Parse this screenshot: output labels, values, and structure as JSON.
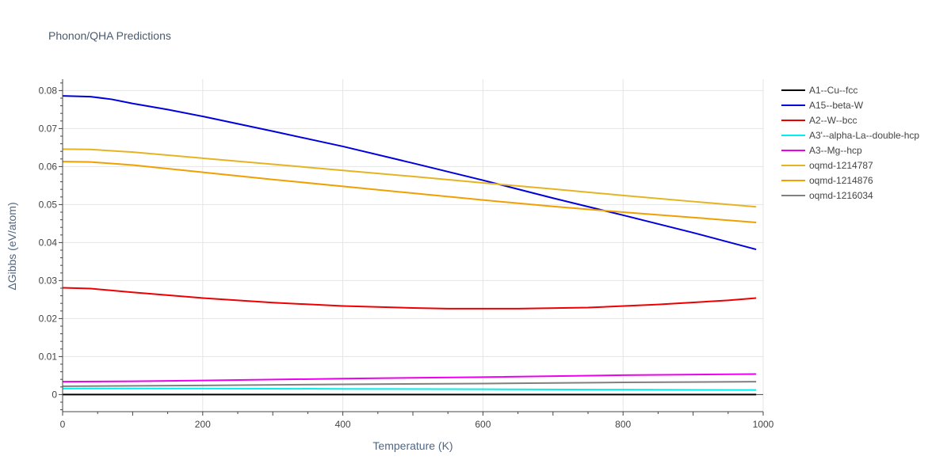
{
  "chart_data": {
    "type": "line",
    "title": "Phonon/QHA Predictions",
    "xlabel": "Temperature (K)",
    "ylabel": "ΔGibbs (eV/atom)",
    "xlim": [
      0,
      1000
    ],
    "ylim": [
      -0.0045,
      0.083
    ],
    "xticks": [
      0,
      200,
      400,
      600,
      800,
      1000
    ],
    "yticks": [
      0,
      0.01,
      0.02,
      0.03,
      0.04,
      0.05,
      0.06,
      0.07,
      0.08
    ],
    "ytick_labels": [
      "0",
      "0.01",
      "0.02",
      "0.03",
      "0.04",
      "0.05",
      "0.06",
      "0.07",
      "0.08"
    ],
    "grid": true,
    "legend_position": "right",
    "series": [
      {
        "name": "A1--Cu--fcc",
        "color": "#000000",
        "x": [
          0,
          990
        ],
        "y": [
          0.0,
          0.0
        ]
      },
      {
        "name": "A15--beta-W",
        "color": "#0000dd",
        "x": [
          0,
          40,
          70,
          100,
          150,
          200,
          300,
          400,
          500,
          600,
          700,
          800,
          900,
          990
        ],
        "y": [
          0.0786,
          0.0784,
          0.0777,
          0.0766,
          0.075,
          0.0732,
          0.0693,
          0.0653,
          0.0609,
          0.0564,
          0.0517,
          0.0472,
          0.0426,
          0.0382
        ]
      },
      {
        "name": "A2--W--bcc",
        "color": "#ee0000",
        "x": [
          0,
          40,
          100,
          200,
          300,
          400,
          500,
          550,
          650,
          750,
          850,
          950,
          990
        ],
        "y": [
          0.0281,
          0.0279,
          0.0269,
          0.0254,
          0.0242,
          0.0233,
          0.0228,
          0.0226,
          0.0226,
          0.0229,
          0.0237,
          0.0248,
          0.0254
        ]
      },
      {
        "name": "A3'--alpha-La--double-hcp",
        "color": "#00eeee",
        "x": [
          0,
          200,
          400,
          600,
          800,
          990
        ],
        "y": [
          0.0016,
          0.0016,
          0.0015,
          0.0014,
          0.0013,
          0.0012
        ]
      },
      {
        "name": "A3--Mg--hcp",
        "color": "#ee00ee",
        "x": [
          0,
          100,
          200,
          400,
          600,
          800,
          990
        ],
        "y": [
          0.0034,
          0.0035,
          0.0037,
          0.0042,
          0.0046,
          0.0051,
          0.0054
        ]
      },
      {
        "name": "oqmd-1214787",
        "color": "#e6b422",
        "x": [
          0,
          40,
          100,
          200,
          300,
          400,
          500,
          600,
          700,
          800,
          900,
          990
        ],
        "y": [
          0.0646,
          0.0645,
          0.0638,
          0.0622,
          0.0606,
          0.059,
          0.0574,
          0.0557,
          0.0541,
          0.0524,
          0.0508,
          0.0494
        ]
      },
      {
        "name": "oqmd-1214876",
        "color": "#f0a000",
        "x": [
          0,
          40,
          100,
          200,
          300,
          400,
          500,
          600,
          700,
          800,
          900,
          990
        ],
        "y": [
          0.0613,
          0.0612,
          0.0604,
          0.0585,
          0.0566,
          0.0548,
          0.053,
          0.0512,
          0.0495,
          0.048,
          0.0466,
          0.0453
        ]
      },
      {
        "name": "oqmd-1216034",
        "color": "#808080",
        "x": [
          0,
          200,
          400,
          600,
          800,
          990
        ],
        "y": [
          0.0022,
          0.0024,
          0.0027,
          0.0029,
          0.0032,
          0.0034
        ]
      }
    ]
  }
}
